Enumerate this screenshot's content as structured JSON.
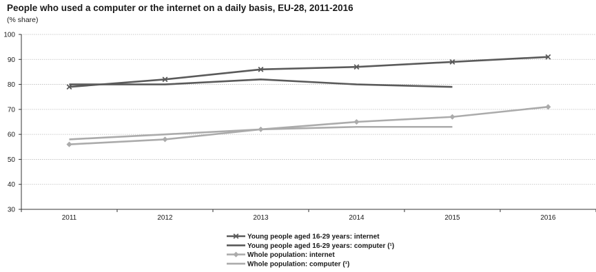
{
  "chart_data": {
    "type": "line",
    "title": "People who used a computer or the internet on a daily basis, EU-28, 2011-2016",
    "subtitle": "(% share)",
    "xlabel": "",
    "ylabel": "",
    "categories": [
      "2011",
      "2012",
      "2013",
      "2014",
      "2015",
      "2016"
    ],
    "ylim": [
      30,
      100
    ],
    "yticks": [
      30,
      40,
      50,
      60,
      70,
      80,
      90,
      100
    ],
    "grid": "horizontal",
    "legend_position": "bottom",
    "series": [
      {
        "name": "Young people aged 16-29 years: internet",
        "values": [
          79,
          82,
          86,
          87,
          89,
          91
        ],
        "color": "#5a5a5a",
        "marker": "x"
      },
      {
        "name": "Young people aged 16-29 years: computer (¹)",
        "values": [
          80,
          80,
          82,
          80,
          79,
          null
        ],
        "color": "#5a5a5a",
        "marker": "none"
      },
      {
        "name": "Whole population: internet",
        "values": [
          56,
          58,
          62,
          65,
          67,
          71
        ],
        "color": "#ababab",
        "marker": "diamond"
      },
      {
        "name": "Whole population: computer (¹)",
        "values": [
          58,
          60,
          62,
          63,
          63,
          null
        ],
        "color": "#ababab",
        "marker": "none"
      }
    ]
  }
}
